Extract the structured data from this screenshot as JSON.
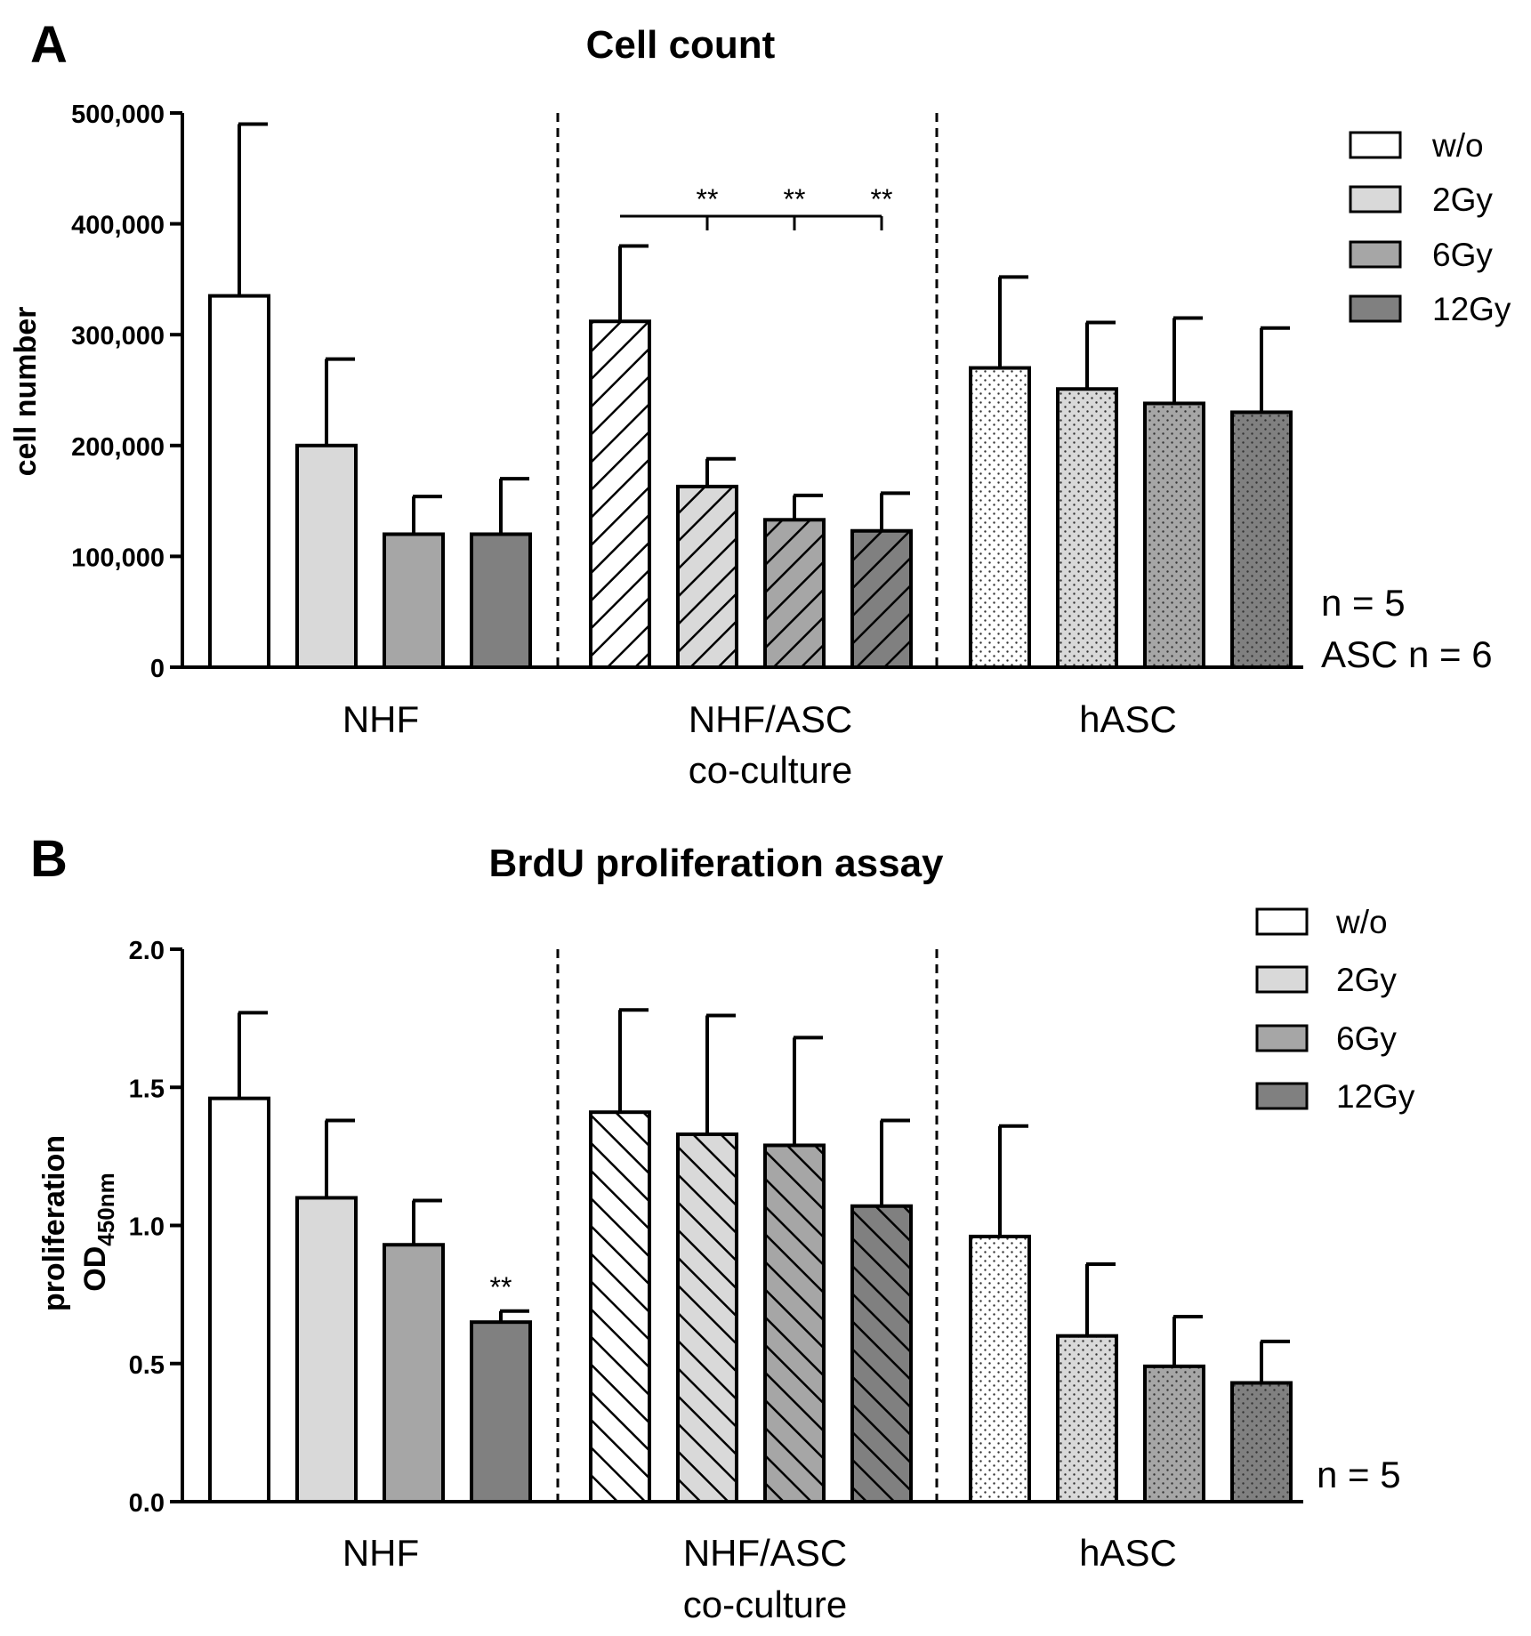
{
  "figure": {
    "panels": [
      {
        "letter": "A"
      },
      {
        "letter": "B"
      }
    ]
  },
  "legend": {
    "entries": [
      "w/o",
      "2Gy",
      "6Gy",
      "12Gy"
    ],
    "fills": [
      "#ffffff",
      "#d9d9d9",
      "#a6a6a6",
      "#808080"
    ]
  },
  "group_labels": [
    [
      "NHF"
    ],
    [
      "NHF/ASC",
      "co-culture"
    ],
    [
      "hASC"
    ]
  ],
  "chart_data": [
    {
      "type": "bar",
      "title": "Cell count",
      "xlabel": "",
      "ylabel": "cell number",
      "ylim": [
        0,
        500000
      ],
      "ytick_values": [
        0,
        100000,
        200000,
        300000,
        400000,
        500000
      ],
      "ytick_labels": [
        "0",
        "100,000",
        "200,000",
        "300,000",
        "400,000",
        "500,000"
      ],
      "groups": [
        "NHF",
        "NHF/ASC co-culture",
        "hASC"
      ],
      "group_patterns": [
        "solid",
        "hatch",
        "dots"
      ],
      "series": [
        {
          "name": "w/o",
          "values": [
            335000,
            312000,
            270000
          ],
          "errors": [
            155000,
            68000,
            82000
          ]
        },
        {
          "name": "2Gy",
          "values": [
            200000,
            163000,
            251000
          ],
          "errors": [
            78000,
            25000,
            60000
          ]
        },
        {
          "name": "6Gy",
          "values": [
            120000,
            133000,
            238000
          ],
          "errors": [
            34000,
            22000,
            77000
          ]
        },
        {
          "name": "12Gy",
          "values": [
            120000,
            123000,
            230000
          ],
          "errors": [
            50000,
            34000,
            76000
          ]
        }
      ],
      "significance": {
        "bracket_group": 1,
        "from_series": 0,
        "marks": [
          {
            "series": 1,
            "text": "**"
          },
          {
            "series": 2,
            "text": "**"
          },
          {
            "series": 3,
            "text": "**"
          }
        ]
      },
      "annotation": [
        "n = 5",
        "ASC n = 6"
      ]
    },
    {
      "type": "bar",
      "title": "BrdU proliferation assay",
      "xlabel": "",
      "ylabel": "proliferation",
      "ylabel_line2": "OD",
      "ylabel_subscript": "450nm",
      "ylim": [
        0,
        2
      ],
      "ytick_values": [
        0,
        0.5,
        1,
        1.5,
        2
      ],
      "ytick_labels": [
        "0.0",
        "0.5",
        "1.0",
        "1.5",
        "2.0"
      ],
      "groups": [
        "NHF",
        "NHF/ASC co-culture",
        "hASC"
      ],
      "group_patterns": [
        "solid",
        "hatch-back",
        "dots"
      ],
      "series": [
        {
          "name": "w/o",
          "values": [
            1.46,
            1.41,
            0.96
          ],
          "errors": [
            0.31,
            0.37,
            0.4
          ]
        },
        {
          "name": "2Gy",
          "values": [
            1.1,
            1.33,
            0.6
          ],
          "errors": [
            0.28,
            0.43,
            0.26
          ]
        },
        {
          "name": "6Gy",
          "values": [
            0.93,
            1.29,
            0.49
          ],
          "errors": [
            0.16,
            0.39,
            0.18
          ]
        },
        {
          "name": "12Gy",
          "values": [
            0.65,
            1.07,
            0.43
          ],
          "errors": [
            0.04,
            0.31,
            0.15
          ]
        }
      ],
      "significance": {
        "stars": [
          {
            "group": 0,
            "series": 3,
            "text": "**"
          }
        ]
      },
      "annotation": [
        "n = 5"
      ]
    }
  ]
}
